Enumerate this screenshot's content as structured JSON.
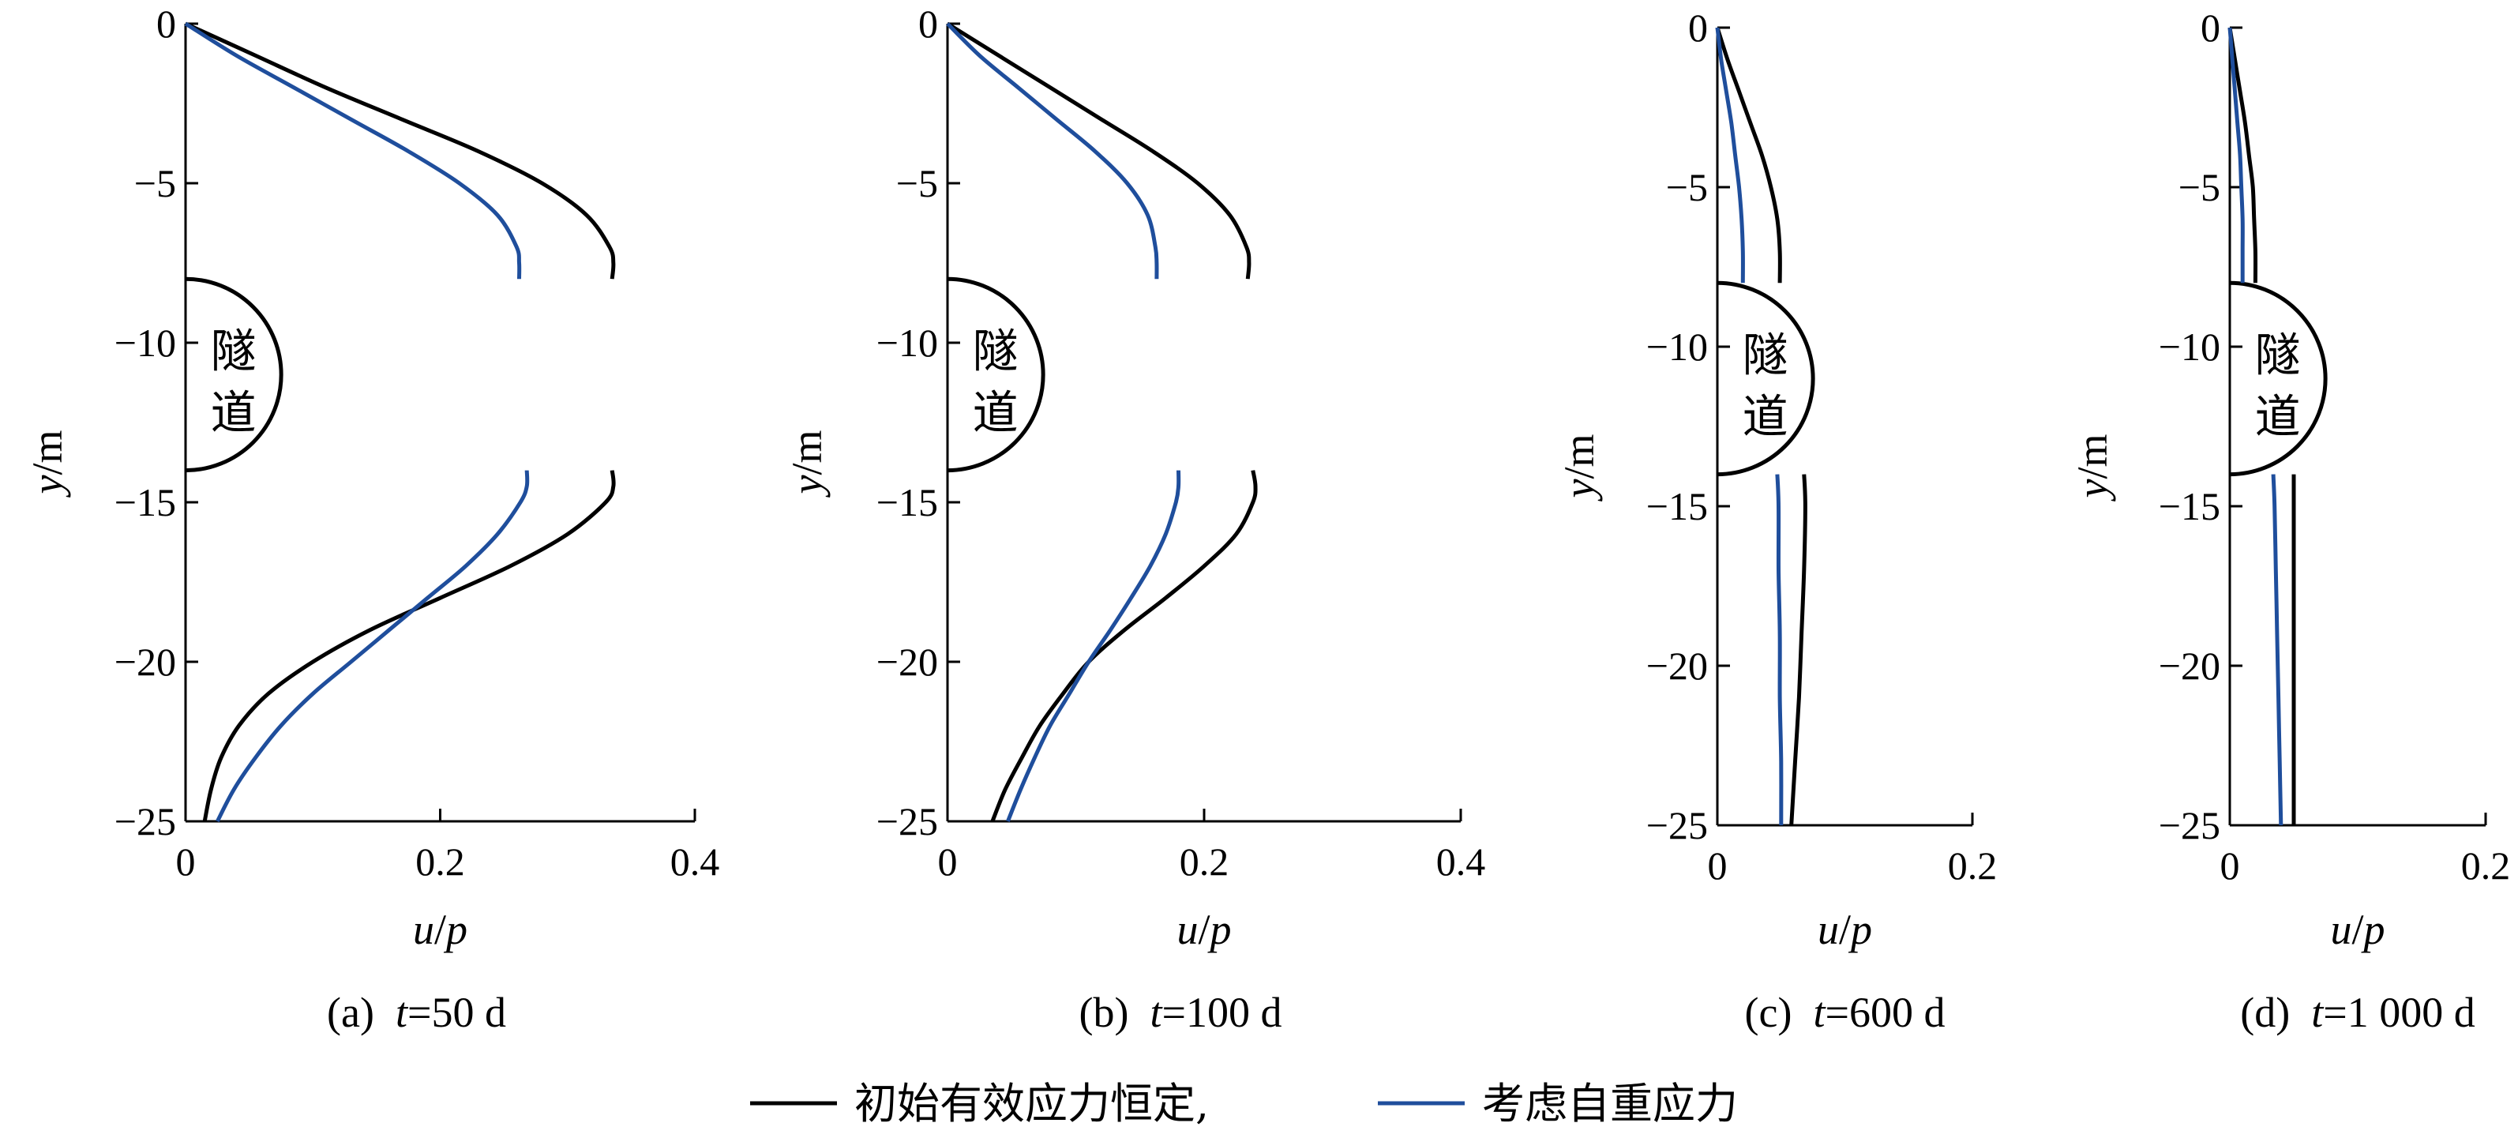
{
  "colors": {
    "series_black": "#000000",
    "series_blue": "#1f4e9c"
  },
  "legend": {
    "items": [
      {
        "label": "初始有效应力恒定,",
        "color": "#000000"
      },
      {
        "label": "考虑自重应力",
        "color": "#1f4e9c"
      }
    ]
  },
  "chart_data": [
    {
      "type": "line",
      "caption": "(a)  t=50 d",
      "xlabel": "u/p",
      "ylabel": "y/m",
      "xlim": [
        0,
        0.4
      ],
      "ylim": [
        -25,
        0
      ],
      "xticks": [
        "0",
        "0.2",
        "0.4"
      ],
      "yticks": [
        "0",
        "−5",
        "−10",
        "−15",
        "−20",
        "−25"
      ],
      "tunnel": {
        "label_top": "隧",
        "label_bottom": "道",
        "y_top": -8,
        "y_bottom": -14
      },
      "series": [
        {
          "color": "#000000",
          "segments": [
            {
              "y": [
                0,
                -1,
                -2,
                -3,
                -4,
                -5,
                -6,
                -7,
                -7.5,
                -8
              ],
              "x": [
                0,
                0.055,
                0.11,
                0.17,
                0.23,
                0.28,
                0.315,
                0.333,
                0.336,
                0.335
              ]
            },
            {
              "y": [
                -14,
                -14.5,
                -15,
                -16,
                -17,
                -18,
                -19,
                -20,
                -21,
                -22,
                -23,
                -24,
                -25
              ],
              "x": [
                0.335,
                0.336,
                0.33,
                0.3,
                0.255,
                0.2,
                0.145,
                0.1,
                0.065,
                0.042,
                0.028,
                0.02,
                0.015
              ]
            }
          ]
        },
        {
          "color": "#1f4e9c",
          "segments": [
            {
              "y": [
                0,
                -1,
                -2,
                -3,
                -4,
                -5,
                -6,
                -7,
                -7.5,
                -8
              ],
              "x": [
                0,
                0.04,
                0.085,
                0.13,
                0.175,
                0.215,
                0.245,
                0.26,
                0.262,
                0.262
              ]
            },
            {
              "y": [
                -14,
                -14.5,
                -15,
                -16,
                -17,
                -18,
                -19,
                -20,
                -21,
                -22,
                -23,
                -24,
                -25
              ],
              "x": [
                0.268,
                0.268,
                0.263,
                0.245,
                0.22,
                0.19,
                0.16,
                0.13,
                0.1,
                0.075,
                0.055,
                0.038,
                0.025
              ]
            }
          ]
        }
      ]
    },
    {
      "type": "line",
      "caption": "(b)  t=100 d",
      "xlabel": "u/p",
      "ylabel": "y/m",
      "xlim": [
        0,
        0.4
      ],
      "ylim": [
        -25,
        0
      ],
      "xticks": [
        "0",
        "0.2",
        "0.4"
      ],
      "yticks": [
        "0",
        "−5",
        "−10",
        "−15",
        "−20",
        "−25"
      ],
      "tunnel": {
        "label_top": "隧",
        "label_bottom": "道",
        "y_top": -8,
        "y_bottom": -14
      },
      "series": [
        {
          "color": "#000000",
          "segments": [
            {
              "y": [
                0,
                -1,
                -2,
                -3,
                -4,
                -5,
                -6,
                -7,
                -7.5,
                -8
              ],
              "x": [
                0,
                0.04,
                0.08,
                0.12,
                0.16,
                0.195,
                0.22,
                0.233,
                0.235,
                0.234
              ]
            },
            {
              "y": [
                -14,
                -14.5,
                -15,
                -16,
                -17,
                -18,
                -19,
                -20,
                -21,
                -22,
                -23,
                -24,
                -25
              ],
              "x": [
                0.238,
                0.24,
                0.238,
                0.225,
                0.2,
                0.17,
                0.138,
                0.11,
                0.09,
                0.072,
                0.058,
                0.045,
                0.035
              ]
            }
          ]
        },
        {
          "color": "#1f4e9c",
          "segments": [
            {
              "y": [
                0,
                -1,
                -2,
                -3,
                -4,
                -5,
                -6,
                -7,
                -7.5,
                -8
              ],
              "x": [
                0,
                0.025,
                0.055,
                0.085,
                0.115,
                0.14,
                0.156,
                0.162,
                0.163,
                0.163
              ]
            },
            {
              "y": [
                -14,
                -14.5,
                -15,
                -16,
                -17,
                -18,
                -19,
                -20,
                -21,
                -22,
                -23,
                -24,
                -25
              ],
              "x": [
                0.18,
                0.18,
                0.178,
                0.17,
                0.158,
                0.143,
                0.127,
                0.11,
                0.095,
                0.08,
                0.068,
                0.057,
                0.047
              ]
            }
          ]
        }
      ]
    },
    {
      "type": "line",
      "caption": "(c)  t=600 d",
      "xlabel": "u/p",
      "ylabel": "y/m",
      "xlim": [
        0,
        0.2
      ],
      "ylim": [
        -25,
        0
      ],
      "xticks": [
        "0",
        "0.2"
      ],
      "yticks": [
        "0",
        "−5",
        "−10",
        "−15",
        "−20",
        "−25"
      ],
      "tunnel": {
        "label_top": "隧",
        "label_bottom": "道",
        "y_top": -8,
        "y_bottom": -14
      },
      "series": [
        {
          "color": "#000000",
          "segments": [
            {
              "y": [
                0,
                -1,
                -2,
                -3,
                -4,
                -5,
                -6,
                -7,
                -8
              ],
              "x": [
                0,
                0.008,
                0.017,
                0.026,
                0.035,
                0.042,
                0.047,
                0.049,
                0.049
              ]
            },
            {
              "y": [
                -14,
                -15,
                -17,
                -19,
                -21,
                -23,
                -25
              ],
              "x": [
                0.068,
                0.069,
                0.068,
                0.066,
                0.064,
                0.061,
                0.058
              ]
            }
          ]
        },
        {
          "color": "#1f4e9c",
          "segments": [
            {
              "y": [
                0,
                -1,
                -2,
                -3,
                -4,
                -5,
                -6,
                -7,
                -8
              ],
              "x": [
                0,
                0.003,
                0.007,
                0.011,
                0.014,
                0.017,
                0.019,
                0.02,
                0.02
              ]
            },
            {
              "y": [
                -14,
                -15,
                -17,
                -19,
                -21,
                -23,
                -25
              ],
              "x": [
                0.047,
                0.048,
                0.048,
                0.049,
                0.049,
                0.05,
                0.05
              ]
            }
          ]
        }
      ]
    },
    {
      "type": "line",
      "caption": "(d)  t=1 000 d",
      "xlabel": "u/p",
      "ylabel": "y/m",
      "xlim": [
        0,
        0.2
      ],
      "ylim": [
        -25,
        0
      ],
      "xticks": [
        "0",
        "0.2"
      ],
      "yticks": [
        "0",
        "−5",
        "−10",
        "−15",
        "−20",
        "−25"
      ],
      "tunnel": {
        "label_top": "隧",
        "label_bottom": "道",
        "y_top": -8,
        "y_bottom": -14
      },
      "series": [
        {
          "color": "#000000",
          "segments": [
            {
              "y": [
                0,
                -1,
                -2,
                -3,
                -4,
                -5,
                -6,
                -7,
                -8
              ],
              "x": [
                0,
                0.004,
                0.008,
                0.012,
                0.015,
                0.018,
                0.019,
                0.02,
                0.02
              ]
            },
            {
              "y": [
                -14,
                -15,
                -17,
                -19,
                -21,
                -23,
                -25
              ],
              "x": [
                0.05,
                0.05,
                0.05,
                0.05,
                0.05,
                0.05,
                0.05
              ]
            }
          ]
        },
        {
          "color": "#1f4e9c",
          "segments": [
            {
              "y": [
                0,
                -1,
                -2,
                -3,
                -4,
                -5,
                -6,
                -7,
                -8
              ],
              "x": [
                0,
                0.002,
                0.004,
                0.006,
                0.008,
                0.009,
                0.01,
                0.01,
                0.01
              ]
            },
            {
              "y": [
                -14,
                -15,
                -17,
                -19,
                -21,
                -23,
                -25
              ],
              "x": [
                0.034,
                0.035,
                0.036,
                0.037,
                0.038,
                0.039,
                0.04
              ]
            }
          ]
        }
      ]
    }
  ]
}
